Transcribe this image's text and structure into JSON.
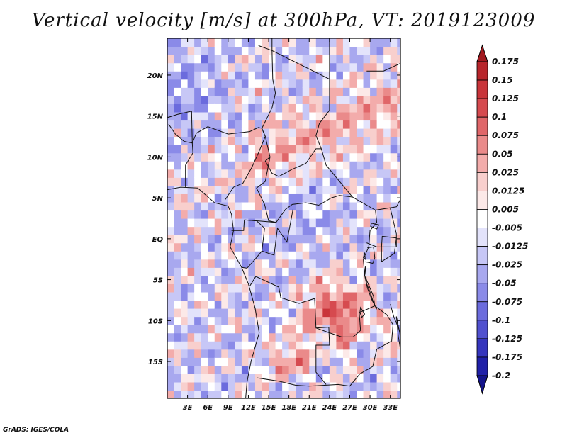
{
  "chart_data": {
    "type": "heatmap",
    "title": "Vertical velocity [m/s] at 300hPa, VT: 2019123009",
    "x_ticks": [
      "3E",
      "6E",
      "9E",
      "12E",
      "15E",
      "18E",
      "21E",
      "24E",
      "27E",
      "30E",
      "33E"
    ],
    "x_tick_values": [
      3,
      6,
      9,
      12,
      15,
      18,
      21,
      24,
      27,
      30,
      33
    ],
    "y_ticks": [
      "20N",
      "15N",
      "10N",
      "5N",
      "EQ",
      "5S",
      "10S",
      "15S"
    ],
    "y_tick_values": [
      20,
      15,
      10,
      5,
      0,
      -5,
      -10,
      -15
    ],
    "lon_range": [
      0,
      34.5
    ],
    "lat_range": [
      -19.5,
      24.5
    ],
    "colorbar": {
      "levels": [
        "0.175",
        "0.15",
        "0.125",
        "0.1",
        "0.075",
        "0.05",
        "0.025",
        "0.0125",
        "0.005",
        "-0.005",
        "-0.0125",
        "-0.025",
        "-0.05",
        "-0.075",
        "-0.1",
        "-0.125",
        "-0.175",
        "-0.2"
      ],
      "colors": [
        "#a11a1f",
        "#b8252b",
        "#c9343a",
        "#d64a4f",
        "#e06669",
        "#ea8a8a",
        "#f3acab",
        "#f8cfcd",
        "#fce9e8",
        "#ffffff",
        "#e3e3fb",
        "#c7c7f6",
        "#a8a8ef",
        "#8a8ae8",
        "#6b6bdd",
        "#5050cf",
        "#3535be",
        "#2020a8",
        "#14148a"
      ]
    }
  },
  "credit": "GrADS: IGES/COLA"
}
